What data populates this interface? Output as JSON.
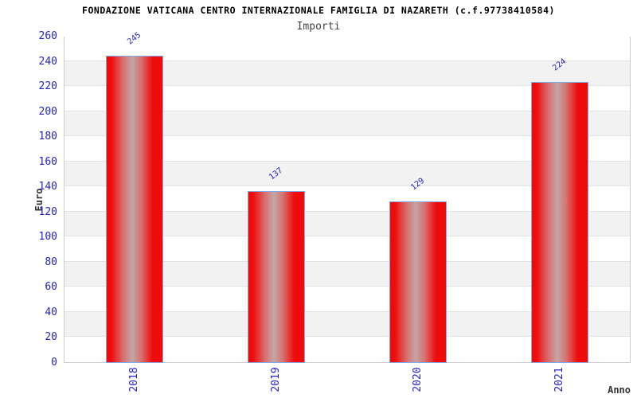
{
  "header": {
    "title": "FONDAZIONE VATICANA CENTRO INTERNAZIONALE FAMIGLIA DI NAZARETH (c.f.97738410584)",
    "subtitle": "Importi"
  },
  "chart_data": {
    "type": "bar",
    "title": "FONDAZIONE VATICANA CENTRO INTERNAZIONALE FAMIGLIA DI NAZARETH (c.f.97738410584)",
    "subtitle": "Importi",
    "categories": [
      "2018",
      "2019",
      "2020",
      "2021"
    ],
    "values": [
      245,
      137,
      129,
      224
    ],
    "xlabel": "Anno",
    "ylabel": "Euro",
    "ylim": [
      0,
      260
    ],
    "ytick_step": 20,
    "grid": "horizontal-bands-alternating",
    "legend": "none",
    "bar_width_ratio": 0.4,
    "value_label_rotation_deg": -38,
    "x_label_rotation_deg": -90,
    "colors": {
      "bar_red": "#ee0b0b",
      "bar_mid_red": "#d97070",
      "bar_highlight": "#c2a6a6",
      "bar_border": "#7fa9e8",
      "tick_label_blue": "#2222cc",
      "value_label_blue": "#2222bb",
      "band_gray": "#f2f2f2",
      "band_white": "#ffffff",
      "gridline": "#e2e2e2",
      "plot_border": "#cccccc",
      "title_color": "#000000",
      "subtitle_color": "#444444",
      "axis_title_color": "#333333"
    }
  }
}
